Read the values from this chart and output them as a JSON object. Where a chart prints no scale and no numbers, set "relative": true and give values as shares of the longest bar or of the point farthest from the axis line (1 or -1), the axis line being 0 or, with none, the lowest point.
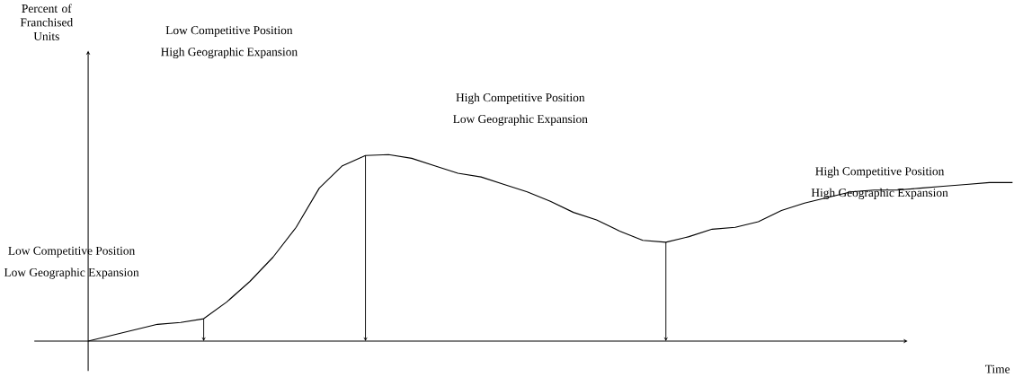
{
  "chart_data": {
    "type": "line",
    "relative": true,
    "xlabel": "Time",
    "categories": [
      null,
      null,
      null,
      null,
      null,
      null,
      null,
      null,
      null,
      null,
      null,
      null,
      null,
      null,
      null,
      null,
      null,
      null,
      null,
      null,
      null,
      null,
      null,
      null,
      null,
      null,
      null,
      null,
      null,
      null,
      null,
      null,
      null,
      null,
      null,
      null,
      null,
      null,
      null,
      null,
      null
    ],
    "series": [
      {
        "color": "#000000",
        "values": [
          0,
          0.03,
          0.06,
          0.09,
          0.1,
          0.12,
          0.21,
          0.32,
          0.45,
          0.61,
          0.82,
          0.94,
          0.995,
          1,
          0.98,
          0.94,
          0.9,
          0.88,
          0.84,
          0.8,
          0.75,
          0.69,
          0.65,
          0.59,
          0.54,
          0.53,
          0.56,
          0.6,
          0.61,
          0.64,
          0.7,
          0.74,
          0.77,
          0.8,
          0.81,
          0.81,
          0.82,
          0.83,
          0.84,
          0.85,
          0.85
        ]
      }
    ],
    "annotations": [
      "Low Competitive Position",
      "High Geographic Expansion",
      "High Competitive Position",
      "Low Geographic Expansion",
      "High Competitive Position",
      "High Geographic Expansion",
      "Low Competitive Position",
      "Low Geographic Expansion",
      "Percent of Franchised Units"
    ],
    "marker": "none",
    "line_style": "solid"
  }
}
